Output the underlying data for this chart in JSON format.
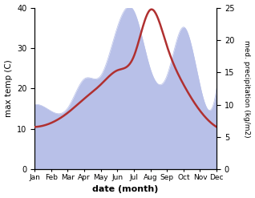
{
  "months": [
    "Jan",
    "Feb",
    "Mar",
    "Apr",
    "May",
    "Jun",
    "Jul",
    "Aug",
    "Sep",
    "Oct",
    "Nov",
    "Dec"
  ],
  "temperature": [
    10.5,
    11.5,
    14.0,
    17.5,
    21.0,
    24.5,
    28.0,
    39.5,
    30.5,
    21.0,
    14.5,
    10.5
  ],
  "precipitation": [
    10.0,
    9.0,
    9.5,
    14.0,
    14.5,
    22.0,
    24.5,
    15.5,
    14.5,
    22.0,
    13.0,
    12.5
  ],
  "temp_color": "#b03030",
  "precip_fill_color": "#b8c0e8",
  "precip_edge_color": "#b8c0e8",
  "xlabel": "date (month)",
  "ylabel_left": "max temp (C)",
  "ylabel_right": "med. precipitation (kg/m2)",
  "ylim_left": [
    0,
    40
  ],
  "ylim_right": [
    0,
    25
  ],
  "yticks_left": [
    0,
    10,
    20,
    30,
    40
  ],
  "yticks_right": [
    0,
    5,
    10,
    15,
    20,
    25
  ],
  "bg_color": "#ffffff",
  "temp_linewidth": 1.8
}
